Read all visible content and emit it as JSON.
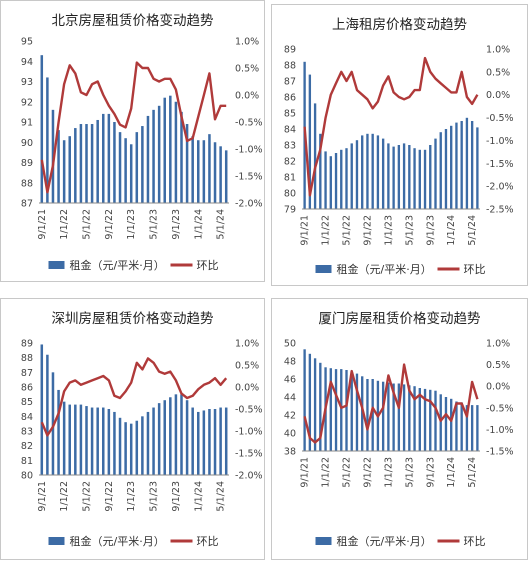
{
  "chart_data": [
    {
      "type": "bar+line",
      "title": "北京房屋租赁价格变动趋势",
      "x_ticks": [
        "9/1/21",
        "1/1/22",
        "5/1/22",
        "9/1/22",
        "1/1/23",
        "5/1/23",
        "9/1/23",
        "1/1/24",
        "5/1/24"
      ],
      "left_axis": {
        "min": 87,
        "max": 95,
        "step": 1,
        "ticks": [
          "95",
          "94",
          "93",
          "92",
          "91",
          "90",
          "89",
          "88",
          "87"
        ]
      },
      "right_axis": {
        "min": -2.0,
        "max": 1.0,
        "step": 0.5,
        "ticks": [
          "1.0%",
          "0.5%",
          "0.0%",
          "-0.5%",
          "-1.0%",
          "-1.5%",
          "-2.0%"
        ]
      },
      "legend": {
        "bar": "租金（元/平米·月）",
        "line": "环比"
      },
      "series": [
        {
          "name": "租金（元/平米·月）",
          "kind": "bar",
          "values": [
            94.3,
            93.2,
            91.6,
            90.6,
            90.1,
            90.3,
            90.7,
            90.9,
            90.9,
            90.9,
            91.1,
            91.4,
            91.4,
            91.0,
            90.5,
            90.2,
            89.9,
            90.5,
            90.8,
            91.3,
            91.6,
            91.8,
            92.2,
            92.3,
            92.0,
            91.5,
            90.9,
            90.3,
            90.1,
            90.1,
            90.4,
            90.0,
            89.8,
            89.6
          ]
        },
        {
          "name": "环比",
          "kind": "line",
          "values": [
            -1.2,
            -1.8,
            -1.3,
            -0.5,
            0.2,
            0.55,
            0.4,
            0.05,
            0.0,
            0.2,
            0.25,
            0.0,
            -0.2,
            -0.35,
            -0.55,
            -0.6,
            -0.25,
            0.6,
            0.5,
            0.5,
            0.3,
            0.25,
            0.3,
            0.3,
            0.1,
            -0.4,
            -0.85,
            -0.8,
            -0.4,
            0.0,
            0.4,
            -0.45,
            -0.2,
            -0.2
          ]
        }
      ]
    },
    {
      "type": "bar+line",
      "title": "上海租房价格变动趋势",
      "x_ticks": [
        "9/1/21",
        "1/1/22",
        "5/1/22",
        "9/1/22",
        "1/1/23",
        "5/1/23",
        "9/1/23",
        "1/1/24",
        "5/1/24"
      ],
      "left_axis": {
        "min": 79,
        "max": 89,
        "step": 1,
        "ticks": [
          "89",
          "88",
          "87",
          "86",
          "85",
          "84",
          "83",
          "82",
          "81",
          "80",
          "79"
        ]
      },
      "right_axis": {
        "min": -2.5,
        "max": 1.0,
        "step": 0.5,
        "ticks": [
          "1.0%",
          "0.5%",
          "0.0%",
          "-0.5%",
          "-1.0%",
          "-1.5%",
          "-2.0%",
          "-2.5%"
        ]
      },
      "legend": {
        "bar": "租金（元/平米·月）",
        "line": "环比"
      },
      "series": [
        {
          "name": "租金（元/平米·月）",
          "kind": "bar",
          "values": [
            88.2,
            87.4,
            85.6,
            83.7,
            82.6,
            82.3,
            82.5,
            82.7,
            82.8,
            83.1,
            83.3,
            83.6,
            83.7,
            83.7,
            83.6,
            83.4,
            83.1,
            82.9,
            83.0,
            83.1,
            83.0,
            82.8,
            82.7,
            82.7,
            83.0,
            83.4,
            83.8,
            84.0,
            84.2,
            84.4,
            84.5,
            84.7,
            84.5,
            84.1
          ]
        },
        {
          "name": "环比",
          "kind": "line",
          "values": [
            -0.7,
            -2.2,
            -1.6,
            -1.2,
            -0.5,
            0.0,
            0.25,
            0.5,
            0.3,
            0.5,
            0.1,
            0.0,
            -0.1,
            -0.3,
            -0.15,
            0.2,
            0.4,
            0.05,
            -0.05,
            -0.1,
            -0.05,
            0.1,
            0.1,
            0.8,
            0.5,
            0.35,
            0.25,
            0.15,
            0.05,
            0.05,
            0.5,
            -0.05,
            -0.2,
            0.0
          ]
        }
      ]
    },
    {
      "type": "bar+line",
      "title": "深圳房屋租赁价格变动趋势",
      "x_ticks": [
        "9/1/21",
        "1/1/22",
        "5/1/22",
        "9/1/22",
        "1/1/23",
        "5/1/23",
        "9/1/23",
        "1/1/24",
        "5/1/24"
      ],
      "left_axis": {
        "min": 80,
        "max": 89,
        "step": 1,
        "ticks": [
          "89",
          "88",
          "87",
          "86",
          "85",
          "84",
          "83",
          "82",
          "81",
          "80"
        ]
      },
      "right_axis": {
        "min": -2.0,
        "max": 1.0,
        "step": 0.5,
        "ticks": [
          "1.0%",
          "0.5%",
          "0.0%",
          "-0.5%",
          "-1.0%",
          "-1.5%",
          "-2.0%"
        ]
      },
      "legend": {
        "bar": "租金（元/平米·月）",
        "line": "环比"
      },
      "series": [
        {
          "name": "租金（元/平米·月）",
          "kind": "bar",
          "values": [
            88.9,
            88.2,
            87.0,
            85.8,
            85.0,
            84.8,
            84.8,
            84.8,
            84.7,
            84.6,
            84.6,
            84.6,
            84.5,
            84.3,
            83.9,
            83.6,
            83.5,
            83.7,
            84.0,
            84.3,
            84.6,
            84.9,
            85.1,
            85.3,
            85.5,
            85.5,
            85.1,
            84.6,
            84.3,
            84.4,
            84.5,
            84.5,
            84.6,
            84.6
          ]
        },
        {
          "name": "环比",
          "kind": "line",
          "values": [
            -0.8,
            -1.1,
            -0.9,
            -0.6,
            -0.1,
            0.1,
            0.15,
            0.05,
            0.1,
            0.15,
            0.2,
            0.25,
            0.15,
            -0.2,
            -0.25,
            -0.1,
            0.1,
            0.55,
            0.4,
            0.65,
            0.55,
            0.35,
            0.3,
            0.35,
            0.15,
            -0.15,
            -0.25,
            -0.2,
            -0.05,
            0.05,
            0.1,
            0.2,
            0.05,
            0.2
          ]
        }
      ]
    },
    {
      "type": "bar+line",
      "title": "厦门房屋租赁价格变动趋势",
      "x_ticks": [
        "9/1/21",
        "1/1/22",
        "5/1/22",
        "9/1/22",
        "1/1/23",
        "5/1/23",
        "9/1/23",
        "1/1/24",
        "5/1/24"
      ],
      "left_axis": {
        "min": 38,
        "max": 50,
        "step": 2,
        "ticks": [
          "50",
          "48",
          "46",
          "44",
          "42",
          "40",
          "38"
        ]
      },
      "right_axis": {
        "min": -1.5,
        "max": 1.0,
        "step": 0.5,
        "ticks": [
          "1.0%",
          "0.5%",
          "0.0%",
          "-0.5%",
          "-1.0%",
          "-1.5%"
        ]
      },
      "legend": {
        "bar": "租金（元/平米·月）",
        "line": "环比"
      },
      "series": [
        {
          "name": "租金（元/平米·月）",
          "kind": "bar",
          "values": [
            49.3,
            48.8,
            48.3,
            47.8,
            47.3,
            47.2,
            47.1,
            47.1,
            47.0,
            46.8,
            46.6,
            46.3,
            46.0,
            46.0,
            45.8,
            45.7,
            45.6,
            45.5,
            45.5,
            45.4,
            45.3,
            45.2,
            45.0,
            44.9,
            44.8,
            44.7,
            44.3,
            44.0,
            43.8,
            43.5,
            43.4,
            43.1,
            43.1,
            43.1
          ]
        },
        {
          "name": "环比",
          "kind": "line",
          "values": [
            -0.7,
            -1.2,
            -1.3,
            -1.2,
            -0.5,
            0.1,
            -0.2,
            -0.5,
            -0.45,
            0.35,
            -0.1,
            -0.5,
            -1.0,
            -0.5,
            -0.7,
            -0.5,
            0.25,
            -0.15,
            -0.5,
            0.5,
            -0.1,
            -0.3,
            -0.2,
            -0.3,
            -0.35,
            -0.5,
            -0.8,
            -0.65,
            -0.8,
            -0.4,
            -0.4,
            -0.7,
            0.1,
            -0.3
          ]
        }
      ]
    }
  ],
  "colors": {
    "bar": "#3c6ba5",
    "line": "#b03a3a",
    "grid": "#e6e6e6",
    "axis": "#888888"
  }
}
